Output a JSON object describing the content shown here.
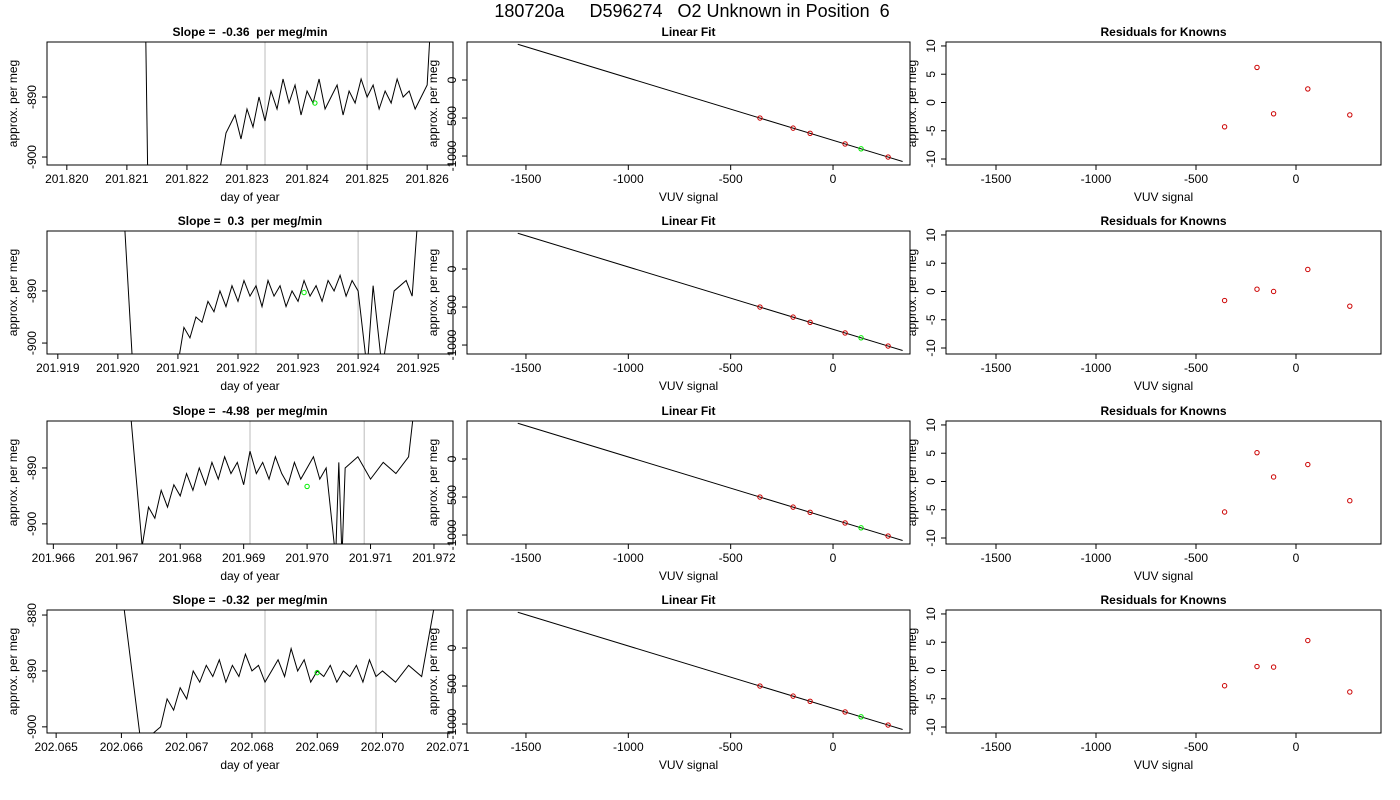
{
  "title": "180720a     D596274   O2 Unknown in Position  6",
  "chart_data": [
    {
      "type": "line",
      "title": "Slope =  -0.36  per meg/min",
      "xlabel": "day of year",
      "ylabel": "approx. per meg",
      "xlim": [
        201.81967,
        201.82643
      ],
      "ylim": [
        -901.33,
        -880.83
      ],
      "xticks": [
        {
          "value": 201.82,
          "label": "201.820"
        },
        201.821,
        201.822,
        201.823,
        201.824,
        201.825,
        201.826
      ],
      "yticks": [
        -890,
        -900
      ],
      "vlines": [
        201.8233,
        201.825
      ],
      "vline_color": "#bbbbbb",
      "x": [
        201.8213,
        201.82135,
        201.8225,
        201.82265,
        201.8228,
        201.8229,
        201.823,
        201.8231,
        201.8232,
        201.8233,
        201.8234,
        201.8235,
        201.8236,
        201.8237,
        201.8238,
        201.8239,
        201.824,
        201.8241,
        201.8242,
        201.8243,
        201.8244,
        201.8245,
        201.8246,
        201.8247,
        201.8248,
        201.8249,
        201.825,
        201.8251,
        201.8252,
        201.8253,
        201.8254,
        201.8255,
        201.8256,
        201.8257,
        201.8258,
        201.8259,
        201.826,
        201.8261
      ],
      "series": [
        {
          "color": "#000000",
          "values": [
            -870,
            -905,
            -905,
            -896,
            -893,
            -897,
            -892,
            -895,
            -890,
            -894,
            -889,
            -892,
            -887,
            -891,
            -888,
            -893,
            -889,
            -891,
            -887,
            -892,
            -890,
            -888,
            -893,
            -889,
            -891,
            -887,
            -890,
            -888,
            -892,
            -889,
            -891,
            -887,
            -890,
            -889,
            -892,
            -890,
            -888,
            -870
          ]
        },
        {
          "color": "#00ee00",
          "x": [
            201.82413
          ],
          "values": [
            -891
          ]
        }
      ]
    },
    {
      "type": "scatter",
      "title": "Linear Fit",
      "xlabel": "VUV signal",
      "ylabel": "approx. per meg",
      "xlim": [
        -1788,
        376
      ],
      "ylim": [
        -1118,
        500
      ],
      "xticks": [
        -1500,
        -1000,
        -500,
        0
      ],
      "yticks": [
        0,
        -500,
        -1000
      ],
      "fit_line": {
        "color": "#000000",
        "x": [
          -1540,
          340
        ],
        "values": [
          470,
          -1072
        ]
      },
      "series": [
        {
          "color": "#cc0000",
          "x": [
            -357,
            -195,
            -112,
            59,
            269
          ],
          "values": [
            -500,
            -633,
            -701,
            -841,
            -1013
          ]
        },
        {
          "color": "#00ee00",
          "x": [
            137
          ],
          "values": [
            -905
          ]
        }
      ]
    },
    {
      "type": "scatter",
      "title": "Residuals for Knowns",
      "xlabel": "VUV signal",
      "ylabel": "approx. per meg",
      "xlim": [
        -1750,
        425
      ],
      "ylim": [
        -11.06,
        10.7
      ],
      "xticks": [
        -1500,
        -1000,
        -500,
        0
      ],
      "yticks": [
        10,
        5,
        0,
        -5,
        -10
      ],
      "series": [
        {
          "color": "#cc0000",
          "x": [
            -357,
            -195,
            -112,
            59,
            269
          ],
          "values": [
            -4.3,
            6.2,
            -2.0,
            2.4,
            -2.2
          ]
        }
      ]
    },
    {
      "type": "line",
      "title": "Slope =  0.3  per meg/min",
      "xlabel": "day of year",
      "ylabel": "approx. per meg",
      "xlim": [
        201.91882,
        201.92558
      ],
      "ylim": [
        -902.1,
        -878.5
      ],
      "xticks": [
        201.919,
        {
          "value": 201.92,
          "label": "201.920"
        },
        201.921,
        201.922,
        201.923,
        201.924,
        201.925
      ],
      "yticks": [
        -890,
        -900
      ],
      "vlines": [
        201.9223,
        201.924
      ],
      "vline_color": "#bbbbbb",
      "x": [
        201.9201,
        201.92025,
        201.921,
        201.9211,
        201.9212,
        201.9213,
        201.9214,
        201.9215,
        201.9216,
        201.9217,
        201.9218,
        201.9219,
        201.922,
        201.9221,
        201.9222,
        201.9223,
        201.9224,
        201.9225,
        201.9226,
        201.9227,
        201.9228,
        201.9229,
        201.923,
        201.9231,
        201.9232,
        201.9233,
        201.9234,
        201.9235,
        201.9236,
        201.9237,
        201.9238,
        201.9239,
        201.924,
        201.92415,
        201.92425,
        201.9244,
        201.9246,
        201.9248,
        201.9249,
        201.925
      ],
      "series": [
        {
          "color": "#000000",
          "values": [
            -875,
            -905,
            -904,
            -897,
            -899,
            -895,
            -896,
            -892,
            -894,
            -890,
            -893,
            -889,
            -892,
            -888,
            -891,
            -889,
            -893,
            -888,
            -891,
            -889,
            -893,
            -890,
            -892,
            -888,
            -891,
            -889,
            -892,
            -888,
            -890,
            -887,
            -891,
            -888,
            -890,
            -905,
            -889,
            -905,
            -890,
            -888,
            -891,
            -875
          ]
        },
        {
          "color": "#00ee00",
          "x": [
            201.9231
          ],
          "values": [
            -890.3
          ]
        }
      ]
    },
    {
      "type": "scatter",
      "title": "Linear Fit",
      "xlabel": "VUV signal",
      "ylabel": "approx. per meg",
      "xlim": [
        -1788,
        376
      ],
      "ylim": [
        -1118,
        500
      ],
      "xticks": [
        -1500,
        -1000,
        -500,
        0
      ],
      "yticks": [
        0,
        -500,
        -1000
      ],
      "fit_line": {
        "color": "#000000",
        "x": [
          -1540,
          340
        ],
        "values": [
          470,
          -1072
        ]
      },
      "series": [
        {
          "color": "#cc0000",
          "x": [
            -357,
            -195,
            -112,
            59,
            269
          ],
          "values": [
            -500,
            -633,
            -701,
            -841,
            -1013
          ]
        },
        {
          "color": "#00ee00",
          "x": [
            137
          ],
          "values": [
            -905
          ]
        }
      ]
    },
    {
      "type": "scatter",
      "title": "Residuals for Knowns",
      "xlabel": "VUV signal",
      "ylabel": "approx. per meg",
      "xlim": [
        -1750,
        425
      ],
      "ylim": [
        -11.06,
        10.7
      ],
      "xticks": [
        -1500,
        -1000,
        -500,
        0
      ],
      "yticks": [
        10,
        5,
        0,
        -5,
        -10
      ],
      "series": [
        {
          "color": "#cc0000",
          "x": [
            -357,
            -195,
            -112,
            59,
            269
          ],
          "values": [
            -1.6,
            0.4,
            0.0,
            3.9,
            -2.6
          ]
        }
      ]
    },
    {
      "type": "line",
      "title": "Slope =  -4.98  per meg/min",
      "xlabel": "day of year",
      "ylabel": "approx. per meg",
      "xlim": [
        201.9659,
        201.9723
      ],
      "ylim": [
        -903.6,
        -881.6
      ],
      "xticks": [
        201.966,
        201.967,
        201.968,
        201.969,
        {
          "value": 201.97,
          "label": "201.970"
        },
        201.971,
        201.972
      ],
      "yticks": [
        -890,
        -900
      ],
      "vlines": [
        201.9691,
        201.9709
      ],
      "vline_color": "#bbbbbb",
      "x": [
        201.9672,
        201.9674,
        201.9675,
        201.9676,
        201.9677,
        201.9678,
        201.9679,
        201.968,
        201.9681,
        201.9682,
        201.9683,
        201.9684,
        201.9685,
        201.9686,
        201.9687,
        201.9688,
        201.9689,
        201.969,
        201.9691,
        201.9692,
        201.9693,
        201.9694,
        201.9695,
        201.9696,
        201.9697,
        201.9698,
        201.9699,
        201.97,
        201.9701,
        201.9702,
        201.9703,
        201.97045,
        201.9705,
        201.97055,
        201.9706,
        201.9708,
        201.971,
        201.9712,
        201.9714,
        201.9716,
        201.9717
      ],
      "series": [
        {
          "color": "#000000",
          "values": [
            -878,
            -904,
            -897,
            -899,
            -894,
            -897,
            -893,
            -895,
            -891,
            -894,
            -890,
            -893,
            -889,
            -892,
            -888,
            -891,
            -889,
            -893,
            -887,
            -891,
            -889,
            -892,
            -888,
            -891,
            -893,
            -889,
            -892,
            -890,
            -888,
            -892,
            -890,
            -906,
            -889,
            -906,
            -890,
            -888,
            -892,
            -889,
            -891,
            -888,
            -878
          ]
        },
        {
          "color": "#00ee00",
          "x": [
            201.97
          ],
          "values": [
            -893.3
          ]
        }
      ]
    },
    {
      "type": "scatter",
      "title": "Linear Fit",
      "xlabel": "VUV signal",
      "ylabel": "approx. per meg",
      "xlim": [
        -1788,
        376
      ],
      "ylim": [
        -1118,
        500
      ],
      "xticks": [
        -1500,
        -1000,
        -500,
        0
      ],
      "yticks": [
        0,
        -500,
        -1000
      ],
      "fit_line": {
        "color": "#000000",
        "x": [
          -1540,
          340
        ],
        "values": [
          470,
          -1072
        ]
      },
      "series": [
        {
          "color": "#cc0000",
          "x": [
            -357,
            -195,
            -112,
            59,
            269
          ],
          "values": [
            -500,
            -633,
            -701,
            -841,
            -1013
          ]
        },
        {
          "color": "#00ee00",
          "x": [
            137
          ],
          "values": [
            -905
          ]
        }
      ]
    },
    {
      "type": "scatter",
      "title": "Residuals for Knowns",
      "xlabel": "VUV signal",
      "ylabel": "approx. per meg",
      "xlim": [
        -1750,
        425
      ],
      "ylim": [
        -11.06,
        10.7
      ],
      "xticks": [
        -1500,
        -1000,
        -500,
        0
      ],
      "yticks": [
        10,
        5,
        0,
        -5,
        -10
      ],
      "series": [
        {
          "color": "#cc0000",
          "x": [
            -357,
            -195,
            -112,
            59,
            269
          ],
          "values": [
            -5.4,
            5.1,
            0.8,
            3.0,
            -3.4
          ]
        }
      ]
    },
    {
      "type": "line",
      "title": "Slope =  -0.32  per meg/min",
      "xlabel": "day of year",
      "ylabel": "approx. per meg",
      "xlim": [
        202.06486,
        202.07108
      ],
      "ylim": [
        -901.1,
        -879.1
      ],
      "xticks": [
        202.065,
        202.066,
        202.067,
        202.068,
        202.069,
        {
          "value": 202.07,
          "label": "202.070"
        },
        202.071
      ],
      "yticks": [
        -880,
        -890,
        -900
      ],
      "vlines": [
        202.0682,
        202.0699
      ],
      "vline_color": "#bbbbbb",
      "x": [
        202.066,
        202.0663,
        202.0666,
        202.0667,
        202.0668,
        202.0669,
        202.067,
        202.0671,
        202.0672,
        202.0673,
        202.0674,
        202.0675,
        202.0676,
        202.0677,
        202.0678,
        202.0679,
        202.068,
        202.0681,
        202.0682,
        202.0683,
        202.0684,
        202.0685,
        202.0686,
        202.0687,
        202.0688,
        202.0689,
        202.069,
        202.0691,
        202.0692,
        202.0693,
        202.0694,
        202.0695,
        202.0696,
        202.0697,
        202.0698,
        202.0699,
        202.07,
        202.0702,
        202.0704,
        202.0706,
        202.0708
      ],
      "series": [
        {
          "color": "#000000",
          "values": [
            -875,
            -903,
            -900,
            -895,
            -897,
            -893,
            -895,
            -890,
            -892,
            -889,
            -891,
            -888,
            -892,
            -889,
            -891,
            -887,
            -890,
            -889,
            -892,
            -890,
            -888,
            -891,
            -886,
            -890,
            -888,
            -892,
            -890,
            -891,
            -889,
            -892,
            -890,
            -891,
            -889,
            -892,
            -888,
            -891,
            -890,
            -892,
            -889,
            -891,
            -878
          ]
        },
        {
          "color": "#00ee00",
          "x": [
            202.069
          ],
          "values": [
            -890.3
          ]
        }
      ]
    },
    {
      "type": "scatter",
      "title": "Linear Fit",
      "xlabel": "VUV signal",
      "ylabel": "approx. per meg",
      "xlim": [
        -1788,
        376
      ],
      "ylim": [
        -1118,
        500
      ],
      "xticks": [
        -1500,
        -1000,
        -500,
        0
      ],
      "yticks": [
        0,
        -500,
        -1000
      ],
      "fit_line": {
        "color": "#000000",
        "x": [
          -1540,
          340
        ],
        "values": [
          470,
          -1072
        ]
      },
      "series": [
        {
          "color": "#cc0000",
          "x": [
            -357,
            -195,
            -112,
            59,
            269
          ],
          "values": [
            -500,
            -633,
            -701,
            -841,
            -1013
          ]
        },
        {
          "color": "#00ee00",
          "x": [
            137
          ],
          "values": [
            -905
          ]
        }
      ]
    },
    {
      "type": "scatter",
      "title": "Residuals for Knowns",
      "xlabel": "VUV signal",
      "ylabel": "approx. per meg",
      "xlim": [
        -1750,
        425
      ],
      "ylim": [
        -11.06,
        10.7
      ],
      "xticks": [
        -1500,
        -1000,
        -500,
        0
      ],
      "yticks": [
        10,
        5,
        0,
        -5,
        -10
      ],
      "series": [
        {
          "color": "#cc0000",
          "x": [
            -357,
            -195,
            -112,
            59,
            269
          ],
          "values": [
            -2.7,
            0.7,
            0.6,
            5.3,
            -3.8
          ]
        }
      ]
    }
  ]
}
